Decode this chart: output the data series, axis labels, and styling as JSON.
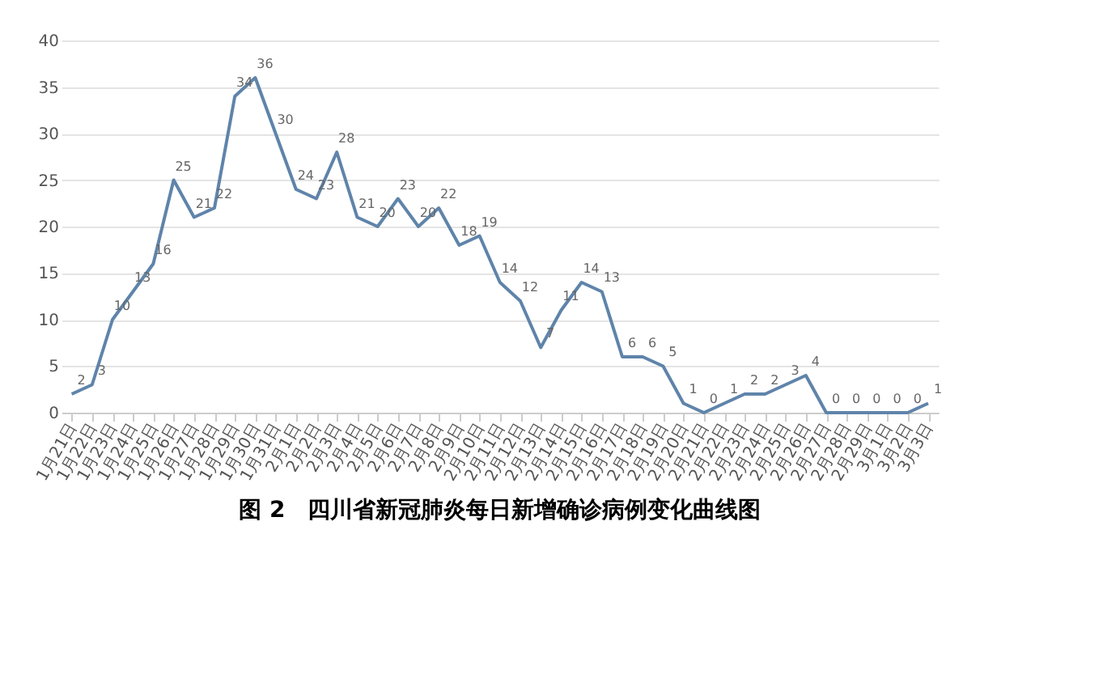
{
  "chart_data": {
    "type": "line",
    "title": "图 2　四川省新冠肺炎每日新增确诊病例变化曲线图",
    "categories": [
      "1月21日",
      "1月22日",
      "1月23日",
      "1月24日",
      "1月25日",
      "1月26日",
      "1月27日",
      "1月28日",
      "1月29日",
      "1月30日",
      "1月31日",
      "2月1日",
      "2月2日",
      "2月3日",
      "2月4日",
      "2月5日",
      "2月6日",
      "2月7日",
      "2月8日",
      "2月9日",
      "2月10日",
      "2月11日",
      "2月12日",
      "2月13日",
      "2月14日",
      "2月15日",
      "2月16日",
      "2月17日",
      "2月18日",
      "2月19日",
      "2月20日",
      "2月21日",
      "2月22日",
      "2月23日",
      "2月24日",
      "2月25日",
      "2月26日",
      "2月27日",
      "2月28日",
      "2月29日",
      "3月1日",
      "3月2日",
      "3月3日"
    ],
    "series": [
      {
        "color": "#5f84aa",
        "values": [
          2,
          3,
          10,
          13,
          16,
          25,
          21,
          22,
          34,
          36,
          30,
          24,
          23,
          28,
          21,
          20,
          23,
          20,
          22,
          18,
          19,
          14,
          12,
          7,
          11,
          14,
          13,
          6,
          6,
          5,
          1,
          0,
          1,
          2,
          2,
          3,
          4,
          0,
          0,
          0,
          0,
          0,
          1
        ]
      }
    ],
    "ylim": [
      0,
      40
    ],
    "yticks": [
      0,
      5,
      10,
      15,
      20,
      25,
      30,
      35,
      40
    ],
    "grid": "y",
    "data_labels": true,
    "marker": "none",
    "line_style": "solid"
  }
}
